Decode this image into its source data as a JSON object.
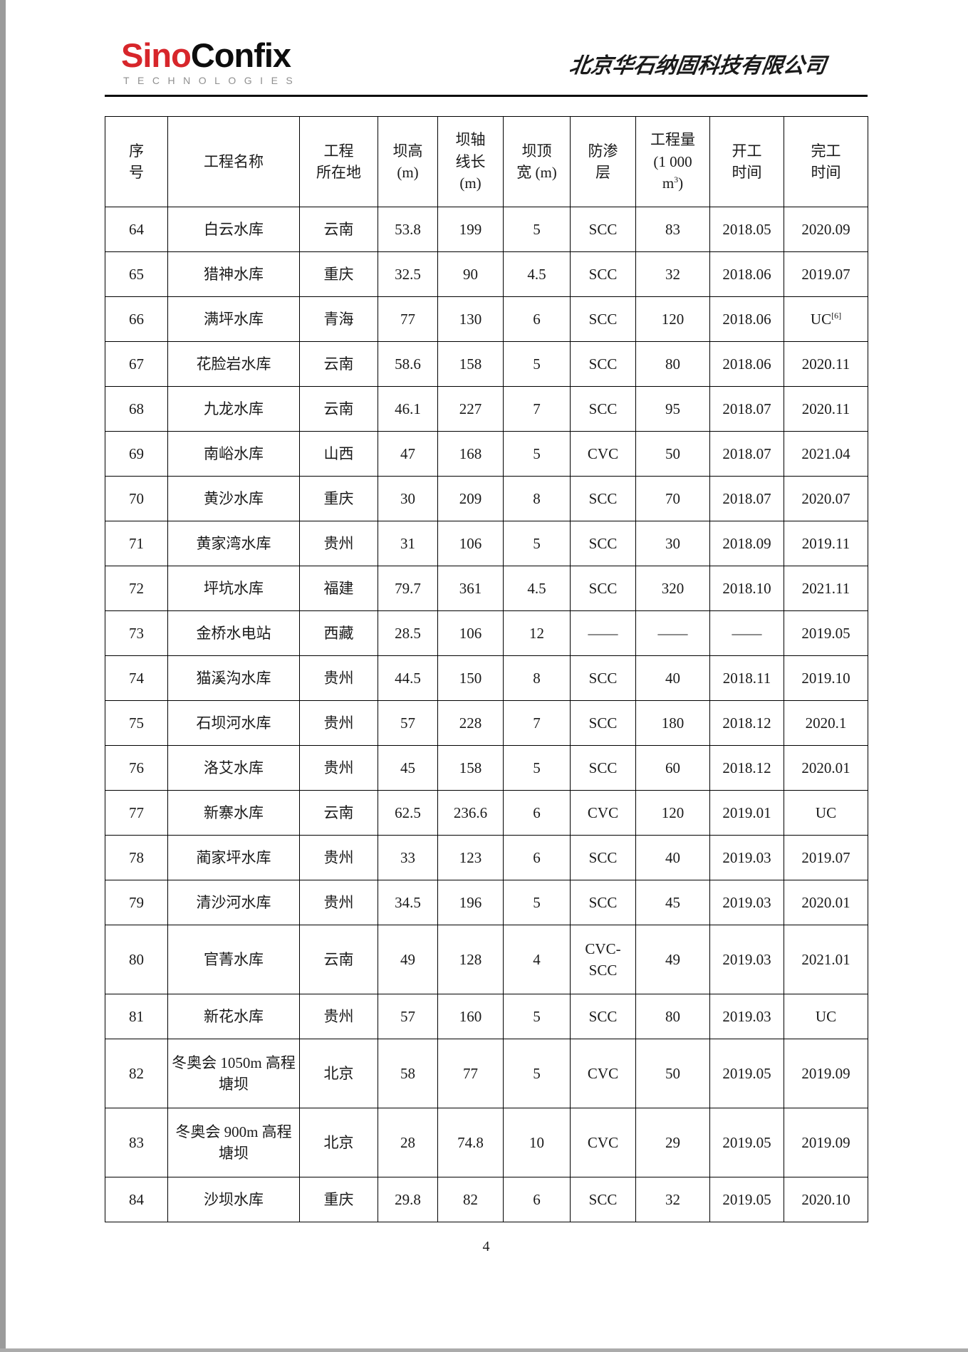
{
  "page": {
    "logo": {
      "part1": "Sino",
      "part2": "Confix",
      "subtitle": "TECHNOLOGIES"
    },
    "company_name": "北京华石纳固科技有限公司",
    "page_number": "4",
    "colors": {
      "logo_red": "#d7262b",
      "logo_black": "#0d0d0d",
      "subtitle_gray": "#8f8f8f",
      "table_border": "#000000"
    }
  },
  "table": {
    "headers": [
      {
        "lines": [
          "序",
          "号"
        ]
      },
      {
        "lines": [
          "工程名称"
        ]
      },
      {
        "lines": [
          "工程",
          "所在地"
        ]
      },
      {
        "lines": [
          "坝高",
          "(m)"
        ]
      },
      {
        "lines": [
          "坝轴",
          "线长",
          "(m)"
        ]
      },
      {
        "lines": [
          "坝顶",
          "宽 (m)"
        ]
      },
      {
        "lines": [
          "防渗",
          "层"
        ]
      },
      {
        "lines": [
          "工程量",
          "(1 000"
        ],
        "sup_line": {
          "base": "m",
          "sup": "3",
          "close": ")"
        }
      },
      {
        "lines": [
          "开工",
          "时间"
        ]
      },
      {
        "lines": [
          "完工",
          "时间"
        ]
      }
    ],
    "rows": [
      {
        "no": "64",
        "name": "白云水库",
        "location": "云南",
        "dam_height": "53.8",
        "axis_length": "199",
        "crest_width": "5",
        "seepage": "SCC",
        "quantity": "83",
        "start": "2018.05",
        "finish": "2020.09"
      },
      {
        "no": "65",
        "name": "猎神水库",
        "location": "重庆",
        "dam_height": "32.5",
        "axis_length": "90",
        "crest_width": "4.5",
        "seepage": "SCC",
        "quantity": "32",
        "start": "2018.06",
        "finish": "2019.07"
      },
      {
        "no": "66",
        "name": "满坪水库",
        "location": "青海",
        "dam_height": "77",
        "axis_length": "130",
        "crest_width": "6",
        "seepage": "SCC",
        "quantity": "120",
        "start": "2018.06",
        "finish": "UC",
        "finish_sup": "[6]"
      },
      {
        "no": "67",
        "name": "花脸岩水库",
        "location": "云南",
        "dam_height": "58.6",
        "axis_length": "158",
        "crest_width": "5",
        "seepage": "SCC",
        "quantity": "80",
        "start": "2018.06",
        "finish": "2020.11"
      },
      {
        "no": "68",
        "name": "九龙水库",
        "location": "云南",
        "dam_height": "46.1",
        "axis_length": "227",
        "crest_width": "7",
        "seepage": "SCC",
        "quantity": "95",
        "start": "2018.07",
        "finish": "2020.11"
      },
      {
        "no": "69",
        "name": "南峪水库",
        "location": "山西",
        "dam_height": "47",
        "axis_length": "168",
        "crest_width": "5",
        "seepage": "CVC",
        "quantity": "50",
        "start": "2018.07",
        "finish": "2021.04"
      },
      {
        "no": "70",
        "name": "黄沙水库",
        "location": "重庆",
        "dam_height": "30",
        "axis_length": "209",
        "crest_width": "8",
        "seepage": "SCC",
        "quantity": "70",
        "start": "2018.07",
        "finish": "2020.07"
      },
      {
        "no": "71",
        "name": "黄家湾水库",
        "location": "贵州",
        "dam_height": "31",
        "axis_length": "106",
        "crest_width": "5",
        "seepage": "SCC",
        "quantity": "30",
        "start": "2018.09",
        "finish": "2019.11"
      },
      {
        "no": "72",
        "name": "坪坑水库",
        "location": "福建",
        "dam_height": "79.7",
        "axis_length": "361",
        "crest_width": "4.5",
        "seepage": "SCC",
        "quantity": "320",
        "start": "2018.10",
        "finish": "2021.11"
      },
      {
        "no": "73",
        "name": "金桥水电站",
        "location": "西藏",
        "dam_height": "28.5",
        "axis_length": "106",
        "crest_width": "12",
        "seepage": "——",
        "quantity": "——",
        "start": "——",
        "finish": "2019.05"
      },
      {
        "no": "74",
        "name": "猫溪沟水库",
        "location": "贵州",
        "dam_height": "44.5",
        "axis_length": "150",
        "crest_width": "8",
        "seepage": "SCC",
        "quantity": "40",
        "start": "2018.11",
        "finish": "2019.10"
      },
      {
        "no": "75",
        "name": "石坝河水库",
        "location": "贵州",
        "dam_height": "57",
        "axis_length": "228",
        "crest_width": "7",
        "seepage": "SCC",
        "quantity": "180",
        "start": "2018.12",
        "finish": "2020.1"
      },
      {
        "no": "76",
        "name": "洛艾水库",
        "location": "贵州",
        "dam_height": "45",
        "axis_length": "158",
        "crest_width": "5",
        "seepage": "SCC",
        "quantity": "60",
        "start": "2018.12",
        "finish": "2020.01"
      },
      {
        "no": "77",
        "name": "新寨水库",
        "location": "云南",
        "dam_height": "62.5",
        "axis_length": "236.6",
        "crest_width": "6",
        "seepage": "CVC",
        "quantity": "120",
        "start": "2019.01",
        "finish": "UC"
      },
      {
        "no": "78",
        "name": "蔺家坪水库",
        "location": "贵州",
        "dam_height": "33",
        "axis_length": "123",
        "crest_width": "6",
        "seepage": "SCC",
        "quantity": "40",
        "start": "2019.03",
        "finish": "2019.07"
      },
      {
        "no": "79",
        "name": "清沙河水库",
        "location": "贵州",
        "dam_height": "34.5",
        "axis_length": "196",
        "crest_width": "5",
        "seepage": "SCC",
        "quantity": "45",
        "start": "2019.03",
        "finish": "2020.01"
      },
      {
        "no": "80",
        "name": "官菁水库",
        "location": "云南",
        "dam_height": "49",
        "axis_length": "128",
        "crest_width": "4",
        "seepage": "CVC-\nSCC",
        "quantity": "49",
        "start": "2019.03",
        "finish": "2021.01"
      },
      {
        "no": "81",
        "name": "新花水库",
        "location": "贵州",
        "dam_height": "57",
        "axis_length": "160",
        "crest_width": "5",
        "seepage": "SCC",
        "quantity": "80",
        "start": "2019.03",
        "finish": "UC"
      },
      {
        "no": "82",
        "name": "冬奥会 1050m 高程塘坝",
        "location": "北京",
        "dam_height": "58",
        "axis_length": "77",
        "crest_width": "5",
        "seepage": "CVC",
        "quantity": "50",
        "start": "2019.05",
        "finish": "2019.09"
      },
      {
        "no": "83",
        "name": "冬奥会 900m 高程塘坝",
        "location": "北京",
        "dam_height": "28",
        "axis_length": "74.8",
        "crest_width": "10",
        "seepage": "CVC",
        "quantity": "29",
        "start": "2019.05",
        "finish": "2019.09"
      },
      {
        "no": "84",
        "name": "沙坝水库",
        "location": "重庆",
        "dam_height": "29.8",
        "axis_length": "82",
        "crest_width": "6",
        "seepage": "SCC",
        "quantity": "32",
        "start": "2019.05",
        "finish": "2020.10"
      }
    ]
  }
}
